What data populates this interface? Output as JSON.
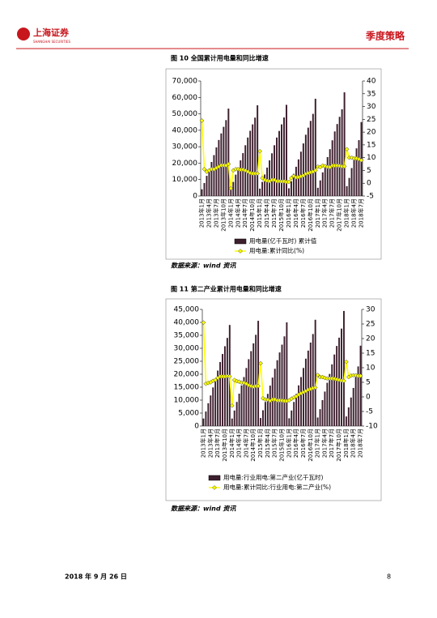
{
  "header": {
    "logo_name": "上海证券",
    "logo_english": "SHANGHAI SECURITIES",
    "section": "季度策略"
  },
  "figures": [
    {
      "title": "图 10 全国累计用电量和同比增速",
      "source": "数据来源：wind 资讯"
    },
    {
      "title": "图 11 第二产业累计用电量和同比增速",
      "source": "数据来源：wind 资讯"
    }
  ],
  "chart_data": [
    {
      "type": "bar_line",
      "categories": [
        "2013年1月",
        null,
        null,
        "2013年4月",
        null,
        null,
        "2013年7月",
        null,
        null,
        "2013年10月",
        null,
        null,
        "2014年1月",
        null,
        null,
        "2014年4月",
        null,
        null,
        "2014年7月",
        null,
        null,
        "2014年10月",
        null,
        null,
        "2015年1月",
        null,
        null,
        "2015年4月",
        null,
        null,
        "2015年7月",
        null,
        null,
        "2015年10月",
        null,
        null,
        "2016年1月",
        null,
        null,
        "2016年4月",
        null,
        null,
        "2016年7月",
        null,
        null,
        "2016年10月",
        null,
        null,
        "2017年1月",
        null,
        null,
        "2017年4月",
        null,
        null,
        "2017年7月",
        null,
        null,
        "2017年10月",
        null,
        null,
        "2018年1月",
        null,
        null,
        "2018年4月",
        null,
        null,
        "2018年7月"
      ],
      "series": [
        {
          "name": "用电量(亿千瓦时) 累计值",
          "type": "bar",
          "color": "#3d1f2e",
          "values": [
            4100,
            7900,
            12300,
            16400,
            20700,
            24900,
            29600,
            34100,
            38100,
            42100,
            46200,
            53200,
            4700,
            8600,
            13000,
            17300,
            21700,
            26100,
            30900,
            35600,
            39700,
            43600,
            47700,
            55200,
            4500,
            8600,
            13100,
            17300,
            21700,
            26000,
            30900,
            35600,
            39600,
            43600,
            47800,
            55500,
            4700,
            9000,
            13500,
            17800,
            22300,
            27000,
            32000,
            37300,
            41600,
            45700,
            50000,
            59200,
            5000,
            9500,
            14400,
            19000,
            23700,
            28500,
            33900,
            39300,
            43800,
            48200,
            52800,
            63100,
            6000,
            11000,
            17000,
            23000,
            29000,
            34000,
            45000
          ]
        },
        {
          "name": "用电量:累计同比(%)",
          "type": "line",
          "axis": "y2",
          "color": "#ffff00",
          "values": [
            24.5,
            5.5,
            4.5,
            5,
            5.5,
            5.5,
            6,
            6.5,
            7,
            7,
            7,
            7.5,
            -2,
            5,
            5.5,
            5.5,
            5.3,
            5.3,
            5,
            4.5,
            4,
            3.8,
            3.8,
            3.8,
            12.5,
            2,
            1.3,
            1,
            0.8,
            1.3,
            1.3,
            0.8,
            0.8,
            0.7,
            0.7,
            0.5,
            0.5,
            2,
            2.8,
            2.3,
            2.4,
            2.7,
            3,
            3.7,
            4,
            4.3,
            4.5,
            5,
            6.5,
            6.3,
            6.9,
            6.7,
            6.4,
            6.3,
            6.9,
            6.9,
            6.9,
            6.8,
            6.6,
            6.6,
            13.3,
            10,
            10,
            9.7,
            9.7,
            9.4,
            9
          ]
        }
      ],
      "ylim": [
        0,
        70000
      ],
      "yticks": [
        0,
        {
          "value": 10000,
          "label": "10,000"
        },
        {
          "value": 20000,
          "label": "20,000"
        },
        {
          "value": 30000,
          "label": "30,000"
        },
        {
          "value": 40000,
          "label": "40,000"
        },
        {
          "value": 50000,
          "label": "50,000"
        },
        {
          "value": 60000,
          "label": "60,000"
        },
        {
          "value": 70000,
          "label": "70,000"
        }
      ],
      "y2lim": [
        -5,
        40
      ],
      "y2ticks": [
        -5,
        0,
        5,
        10,
        15,
        20,
        25,
        30,
        35,
        40
      ]
    },
    {
      "type": "bar_line",
      "categories": [
        "2013年1月",
        null,
        null,
        "2013年4月",
        null,
        null,
        "2013年7月",
        null,
        null,
        "2013年10月",
        null,
        null,
        "2014年1月",
        null,
        null,
        "2014年4月",
        null,
        null,
        "2014年7月",
        null,
        null,
        "2014年10月",
        null,
        null,
        "2015年1月",
        null,
        null,
        "2015年4月",
        null,
        null,
        "2015年7月",
        null,
        null,
        "2015年10月",
        null,
        null,
        "2016年1月",
        null,
        null,
        "2016年4月",
        null,
        null,
        "2016年7月",
        null,
        null,
        "2016年10月",
        null,
        null,
        "2017年1月",
        null,
        null,
        "2017年4月",
        null,
        null,
        "2017年7月",
        null,
        null,
        "2017年10月",
        null,
        null,
        "2018年1月",
        null,
        null,
        "2018年4月",
        null,
        null,
        "2018年7月"
      ],
      "series": [
        {
          "name": "用电量:行业用电:第二产业(亿千瓦时)",
          "type": "bar",
          "color": "#3d1f2e",
          "values": [
            2900,
            5600,
            8800,
            11800,
            14900,
            18000,
            21400,
            24700,
            27800,
            30800,
            34000,
            39000,
            2900,
            6000,
            9300,
            12500,
            15700,
            18900,
            22400,
            25800,
            28900,
            31900,
            35200,
            40600,
            3100,
            6100,
            9300,
            12400,
            15600,
            18700,
            22100,
            25400,
            28400,
            31400,
            34600,
            40000,
            3000,
            6000,
            9300,
            12400,
            15700,
            18900,
            22400,
            26000,
            29100,
            32200,
            35500,
            41000,
            3300,
            6500,
            10000,
            13300,
            16700,
            20100,
            23800,
            27600,
            30900,
            34100,
            37600,
            44400,
            3700,
            7200,
            11000,
            14700,
            19000,
            23000,
            31000
          ]
        },
        {
          "name": "用电量:累计同比:行业用电:第二产业(%)",
          "type": "line",
          "axis": "y2",
          "color": "#ffff00",
          "values": [
            25.5,
            4.5,
            4.8,
            5,
            5.5,
            5.8,
            6.5,
            7,
            7,
            7,
            7.1,
            7,
            -3,
            5.8,
            5.4,
            5.2,
            4.9,
            4.8,
            4.5,
            4,
            3.7,
            3.5,
            3.7,
            3.7,
            11.5,
            -0.5,
            -0.9,
            -1,
            -1.3,
            -0.9,
            -0.9,
            -1.2,
            -1.2,
            -1.3,
            -1.4,
            -1.4,
            -1.2,
            -0.6,
            -0.2,
            0.2,
            0.8,
            1.2,
            1.6,
            2,
            2.5,
            2.7,
            3,
            3.2,
            7.5,
            6.8,
            6.8,
            6.5,
            6.3,
            6.3,
            6.3,
            6.2,
            6,
            5.8,
            5.6,
            5.5,
            12,
            6.8,
            7.3,
            7.4,
            7.4,
            7.2,
            7.2
          ]
        }
      ],
      "ylim": [
        0,
        45000
      ],
      "yticks": [
        0,
        {
          "value": 5000,
          "label": "5,000"
        },
        {
          "value": 10000,
          "label": "10,000"
        },
        {
          "value": 15000,
          "label": "15,000"
        },
        {
          "value": 20000,
          "label": "20,000"
        },
        {
          "value": 25000,
          "label": "25,000"
        },
        {
          "value": 30000,
          "label": "30,000"
        },
        {
          "value": 35000,
          "label": "35,000"
        },
        {
          "value": 40000,
          "label": "40,000"
        },
        {
          "value": 45000,
          "label": "45,000"
        }
      ],
      "y2lim": [
        -10,
        30
      ],
      "y2ticks": [
        -10,
        -5,
        0,
        5,
        10,
        15,
        20,
        25,
        30
      ]
    }
  ],
  "footer": {
    "date": "2018 年 9 月 26 日",
    "page": "8"
  }
}
